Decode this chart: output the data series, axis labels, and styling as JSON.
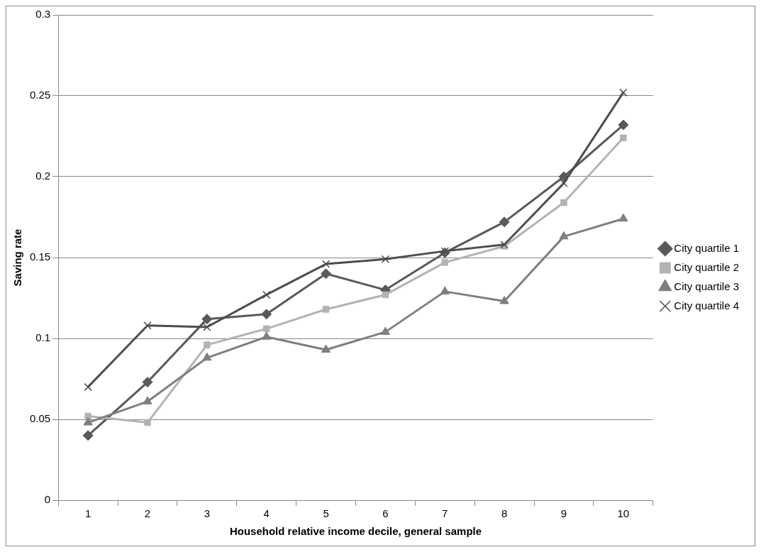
{
  "chart_data": {
    "type": "line",
    "xlabel": "Household relative income decile, general sample",
    "ylabel": "Saving rate",
    "categories": [
      "1",
      "2",
      "3",
      "4",
      "5",
      "6",
      "7",
      "8",
      "9",
      "10"
    ],
    "series": [
      {
        "name": "City quartile 1",
        "color": "#595959",
        "marker": "diamond",
        "values": [
          0.04,
          0.073,
          0.112,
          0.115,
          0.14,
          0.13,
          0.153,
          0.172,
          0.2,
          0.232
        ]
      },
      {
        "name": "City quartile 2",
        "color": "#b3b3b3",
        "marker": "square",
        "values": [
          0.052,
          0.048,
          0.096,
          0.106,
          0.118,
          0.127,
          0.147,
          0.157,
          0.184,
          0.224
        ]
      },
      {
        "name": "City quartile 3",
        "color": "#7f7f7f",
        "marker": "triangle",
        "values": [
          0.048,
          0.061,
          0.088,
          0.101,
          0.093,
          0.104,
          0.129,
          0.123,
          0.163,
          0.174
        ]
      },
      {
        "name": "City quartile 4",
        "color": "#4d4d4d",
        "marker": "cross",
        "values": [
          0.07,
          0.108,
          0.107,
          0.127,
          0.146,
          0.149,
          0.154,
          0.158,
          0.196,
          0.252
        ]
      }
    ],
    "ylim": [
      0,
      0.3
    ],
    "yticks": [
      0,
      0.05,
      0.1,
      0.15,
      0.2,
      0.25,
      0.3
    ],
    "grid": "y",
    "legend": "right",
    "line_style": "solid"
  }
}
